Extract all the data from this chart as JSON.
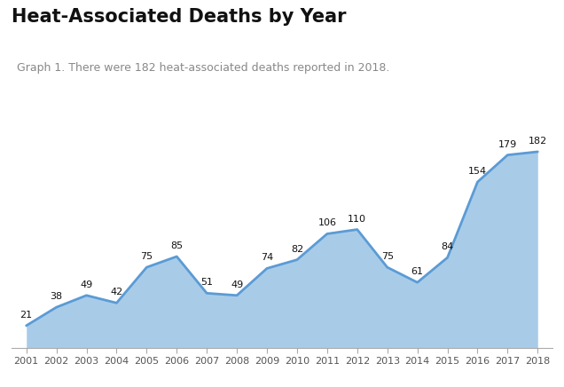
{
  "title": "Heat-Associated Deaths by Year",
  "subtitle": "Graph 1. There were 182 heat-associated deaths reported in 2018.",
  "years": [
    2001,
    2002,
    2003,
    2004,
    2005,
    2006,
    2007,
    2008,
    2009,
    2010,
    2011,
    2012,
    2013,
    2014,
    2015,
    2016,
    2017,
    2018
  ],
  "values": [
    21,
    38,
    49,
    42,
    75,
    85,
    51,
    49,
    74,
    82,
    106,
    110,
    75,
    61,
    84,
    154,
    179,
    182
  ],
  "line_color": "#5B9BD5",
  "fill_color": "#A8CCE8",
  "label_fontsize": 8,
  "label_color": "#111111",
  "title_fontsize": 15,
  "subtitle_fontsize": 9,
  "subtitle_color": "#888888",
  "background_color": "#ffffff",
  "ylim": [
    0,
    215
  ],
  "xlim_left": 2000.5,
  "xlim_right": 2018.5
}
